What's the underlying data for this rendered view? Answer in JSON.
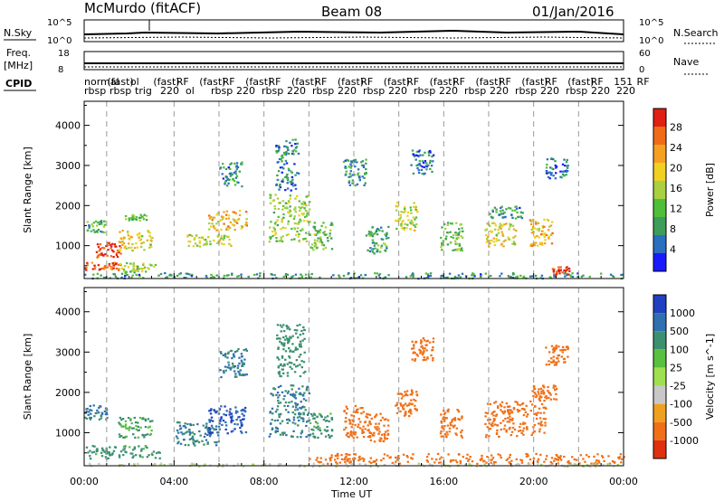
{
  "header": {
    "station": "McMurdo (fitACF)",
    "beam": "Beam 08",
    "date": "01/Jan/2016"
  },
  "top_panels": {
    "nsky_label": "N.Sky",
    "nsearch_label": "N.Search",
    "freq_label": "Freq.",
    "freq_unit": "[MHz]",
    "nave_label": "Nave",
    "cpid_label": "CPID",
    "nsky_ticks": [
      "10^5",
      "10^0"
    ],
    "nsearch_ticks": [
      "10^5",
      "10^0"
    ],
    "freq_ticks": [
      "18",
      "8"
    ],
    "nave_ticks": [
      "60",
      "0"
    ],
    "cpid_row1": [
      "normal",
      "(fast)",
      "ol",
      "(fast)",
      "RF",
      "(fast)",
      "RF",
      "(fast)",
      "RF",
      "(fast)",
      "RF",
      "(fast)",
      "RF",
      "(fast)",
      "RF",
      "(fast)",
      "RF",
      "(fast)",
      "RF",
      "(fast)",
      "RF",
      "(fast)",
      "RF",
      "151",
      "RF"
    ],
    "cpid_row2": [
      "rbsp",
      "rbsp",
      "trig",
      "220",
      "ol",
      "rbsp",
      "220",
      "rbsp",
      "220",
      "rbsp",
      "220",
      "rbsp",
      "220",
      "rbsp",
      "220",
      "rbsp",
      "220",
      "rbsp",
      "220",
      "rbsp",
      "220",
      "220"
    ]
  },
  "x_axis": {
    "label": "Time UT",
    "ticks": [
      "00:00",
      "04:00",
      "08:00",
      "12:00",
      "16:00",
      "20:00",
      "00:00"
    ]
  },
  "chart_data": [
    {
      "type": "heatmap",
      "title": "Power",
      "xlabel": "Time UT",
      "ylabel": "Slant Range [km]",
      "x_range_hours": [
        0,
        24
      ],
      "ylim": [
        180,
        4600
      ],
      "y_ticks": [
        1000,
        2000,
        3000,
        4000
      ],
      "colorbar": {
        "label": "Power [dB]",
        "ticks": [
          "4",
          "8",
          "12",
          "16",
          "20",
          "24",
          "28"
        ],
        "colors": [
          "#1a1aff",
          "#2a6fc0",
          "#3c9e5a",
          "#4fbf3a",
          "#a8d040",
          "#f0d020",
          "#f5a020",
          "#f06a18",
          "#e02010"
        ]
      },
      "dashed_hours": [
        1,
        4,
        6,
        8,
        10,
        12,
        14,
        16,
        18,
        20,
        22
      ],
      "regions": [
        {
          "t": [
            0.0,
            1.5
          ],
          "r": [
            400,
            620
          ],
          "v": 26
        },
        {
          "t": [
            0.5,
            1.6
          ],
          "r": [
            700,
            1100
          ],
          "v": 28
        },
        {
          "t": [
            0.1,
            0.9
          ],
          "r": [
            1350,
            1650
          ],
          "v": 10
        },
        {
          "t": [
            1.5,
            3.0
          ],
          "r": [
            900,
            1400
          ],
          "v": 18
        },
        {
          "t": [
            1.8,
            2.8
          ],
          "r": [
            1650,
            1800
          ],
          "v": 12
        },
        {
          "t": [
            1.5,
            3.2
          ],
          "r": [
            350,
            600
          ],
          "v": 14
        },
        {
          "t": [
            4.5,
            6.5
          ],
          "r": [
            1000,
            1300
          ],
          "v": 16
        },
        {
          "t": [
            5.5,
            7.2
          ],
          "r": [
            1400,
            1900
          ],
          "v": 20
        },
        {
          "t": [
            6.0,
            7.0
          ],
          "r": [
            2500,
            3100
          ],
          "v": 8
        },
        {
          "t": [
            8.2,
            10.0
          ],
          "r": [
            1100,
            2300
          ],
          "v": 14
        },
        {
          "t": [
            8.5,
            9.5
          ],
          "r": [
            2400,
            3700
          ],
          "v": 6
        },
        {
          "t": [
            10.0,
            11.0
          ],
          "r": [
            900,
            1600
          ],
          "v": 12
        },
        {
          "t": [
            11.5,
            12.5
          ],
          "r": [
            2500,
            3200
          ],
          "v": 8
        },
        {
          "t": [
            12.5,
            13.5
          ],
          "r": [
            800,
            1500
          ],
          "v": 10
        },
        {
          "t": [
            13.8,
            14.8
          ],
          "r": [
            1400,
            2100
          ],
          "v": 16
        },
        {
          "t": [
            14.5,
            15.5
          ],
          "r": [
            2800,
            3400
          ],
          "v": 6
        },
        {
          "t": [
            15.8,
            16.8
          ],
          "r": [
            900,
            1600
          ],
          "v": 12
        },
        {
          "t": [
            17.8,
            19.2
          ],
          "r": [
            1000,
            1600
          ],
          "v": 18
        },
        {
          "t": [
            18.0,
            19.5
          ],
          "r": [
            1700,
            2000
          ],
          "v": 8
        },
        {
          "t": [
            19.8,
            20.8
          ],
          "r": [
            1000,
            1700
          ],
          "v": 20
        },
        {
          "t": [
            20.5,
            21.5
          ],
          "r": [
            2700,
            3200
          ],
          "v": 6
        },
        {
          "t": [
            20.8,
            21.6
          ],
          "r": [
            300,
            500
          ],
          "v": 28
        },
        {
          "t": [
            0.0,
            24.0
          ],
          "r": [
            200,
            340
          ],
          "v": 8
        }
      ]
    },
    {
      "type": "heatmap",
      "title": "Velocity",
      "xlabel": "Time UT",
      "ylabel": "Slant Range [km]",
      "x_range_hours": [
        0,
        24
      ],
      "ylim": [
        180,
        4600
      ],
      "y_ticks": [
        1000,
        2000,
        3000,
        4000
      ],
      "colorbar": {
        "label": "Velocity [m s^-1]",
        "ticks": [
          "1000",
          "500",
          "100",
          "25",
          "-25",
          "-100",
          "-500",
          "-1000"
        ],
        "colors": [
          "#2040c0",
          "#3070b0",
          "#3c9070",
          "#5ac040",
          "#a0e050",
          "#c8c8c8",
          "#f0a020",
          "#f07018",
          "#e03010"
        ]
      },
      "dashed_hours": [
        1,
        4,
        6,
        8,
        10,
        12,
        14,
        16,
        18,
        20,
        22
      ],
      "regions": [
        {
          "t": [
            0.0,
            3.5
          ],
          "r": [
            380,
            700
          ],
          "v": 150
        },
        {
          "t": [
            1.5,
            3.0
          ],
          "r": [
            900,
            1400
          ],
          "v": 120
        },
        {
          "t": [
            0.0,
            1.0
          ],
          "r": [
            1350,
            1700
          ],
          "v": 300
        },
        {
          "t": [
            4.0,
            6.0
          ],
          "r": [
            700,
            1300
          ],
          "v": 300
        },
        {
          "t": [
            5.5,
            7.2
          ],
          "r": [
            1000,
            1700
          ],
          "v": 800
        },
        {
          "t": [
            6.0,
            7.2
          ],
          "r": [
            2400,
            3100
          ],
          "v": 300
        },
        {
          "t": [
            8.2,
            10.0
          ],
          "r": [
            900,
            2200
          ],
          "v": 300
        },
        {
          "t": [
            8.5,
            9.8
          ],
          "r": [
            2400,
            3700
          ],
          "v": 200
        },
        {
          "t": [
            10.0,
            11.0
          ],
          "r": [
            900,
            1500
          ],
          "v": 150
        },
        {
          "t": [
            11.5,
            12.5
          ],
          "r": [
            900,
            1700
          ],
          "v": -300
        },
        {
          "t": [
            12.5,
            13.5
          ],
          "r": [
            800,
            1500
          ],
          "v": -300
        },
        {
          "t": [
            13.8,
            14.8
          ],
          "r": [
            1400,
            2100
          ],
          "v": -300
        },
        {
          "t": [
            14.5,
            15.5
          ],
          "r": [
            2800,
            3400
          ],
          "v": -300
        },
        {
          "t": [
            15.8,
            16.8
          ],
          "r": [
            900,
            1600
          ],
          "v": -300
        },
        {
          "t": [
            17.8,
            20.5
          ],
          "r": [
            900,
            1800
          ],
          "v": -300
        },
        {
          "t": [
            19.8,
            21.0
          ],
          "r": [
            1800,
            2200
          ],
          "v": -300
        },
        {
          "t": [
            20.5,
            21.5
          ],
          "r": [
            2700,
            3200
          ],
          "v": -300
        },
        {
          "t": [
            10.0,
            24.0
          ],
          "r": [
            250,
            500
          ],
          "v": -300
        },
        {
          "t": [
            0.0,
            24.0
          ],
          "r": [
            180,
            260
          ],
          "v": 0
        }
      ]
    }
  ]
}
